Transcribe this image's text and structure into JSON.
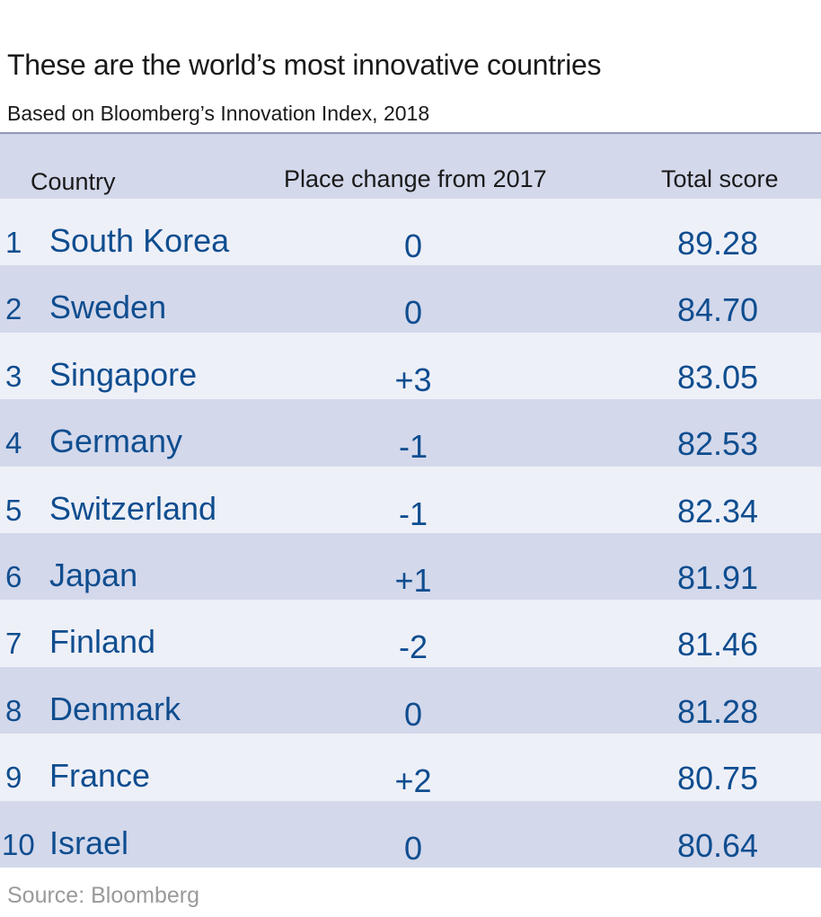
{
  "title": "These are the world’s most innovative countries",
  "subtitle": "Based on Bloomberg’s Innovation Index, 2018",
  "source": "Source: Bloomberg",
  "colors": {
    "header_band": "#d3d8eb",
    "row_light": "#eef0f8",
    "row_dark": "#d3d8eb",
    "value_text": "#0f4d8f"
  },
  "chart_data": {
    "type": "table",
    "title": "These are the world’s most innovative countries",
    "subtitle": "Based on Bloomberg’s Innovation Index, 2018",
    "columns": [
      "Country",
      "Place change from 2017",
      "Total score"
    ],
    "rows": [
      {
        "rank": "1",
        "country": "South Korea",
        "change": "0",
        "score": "89.28"
      },
      {
        "rank": "2",
        "country": "Sweden",
        "change": "0",
        "score": "84.70"
      },
      {
        "rank": "3",
        "country": "Singapore",
        "change": "+3",
        "score": "83.05"
      },
      {
        "rank": "4",
        "country": "Germany",
        "change": "-1",
        "score": "82.53"
      },
      {
        "rank": "5",
        "country": "Switzerland",
        "change": "-1",
        "score": "82.34"
      },
      {
        "rank": "6",
        "country": "Japan",
        "change": "+1",
        "score": "81.91"
      },
      {
        "rank": "7",
        "country": "Finland",
        "change": "-2",
        "score": "81.46"
      },
      {
        "rank": "8",
        "country": "Denmark",
        "change": "0",
        "score": "81.28"
      },
      {
        "rank": "9",
        "country": "France",
        "change": "+2",
        "score": "80.75"
      },
      {
        "rank": "10",
        "country": "Israel",
        "change": "0",
        "score": "80.64"
      }
    ]
  }
}
